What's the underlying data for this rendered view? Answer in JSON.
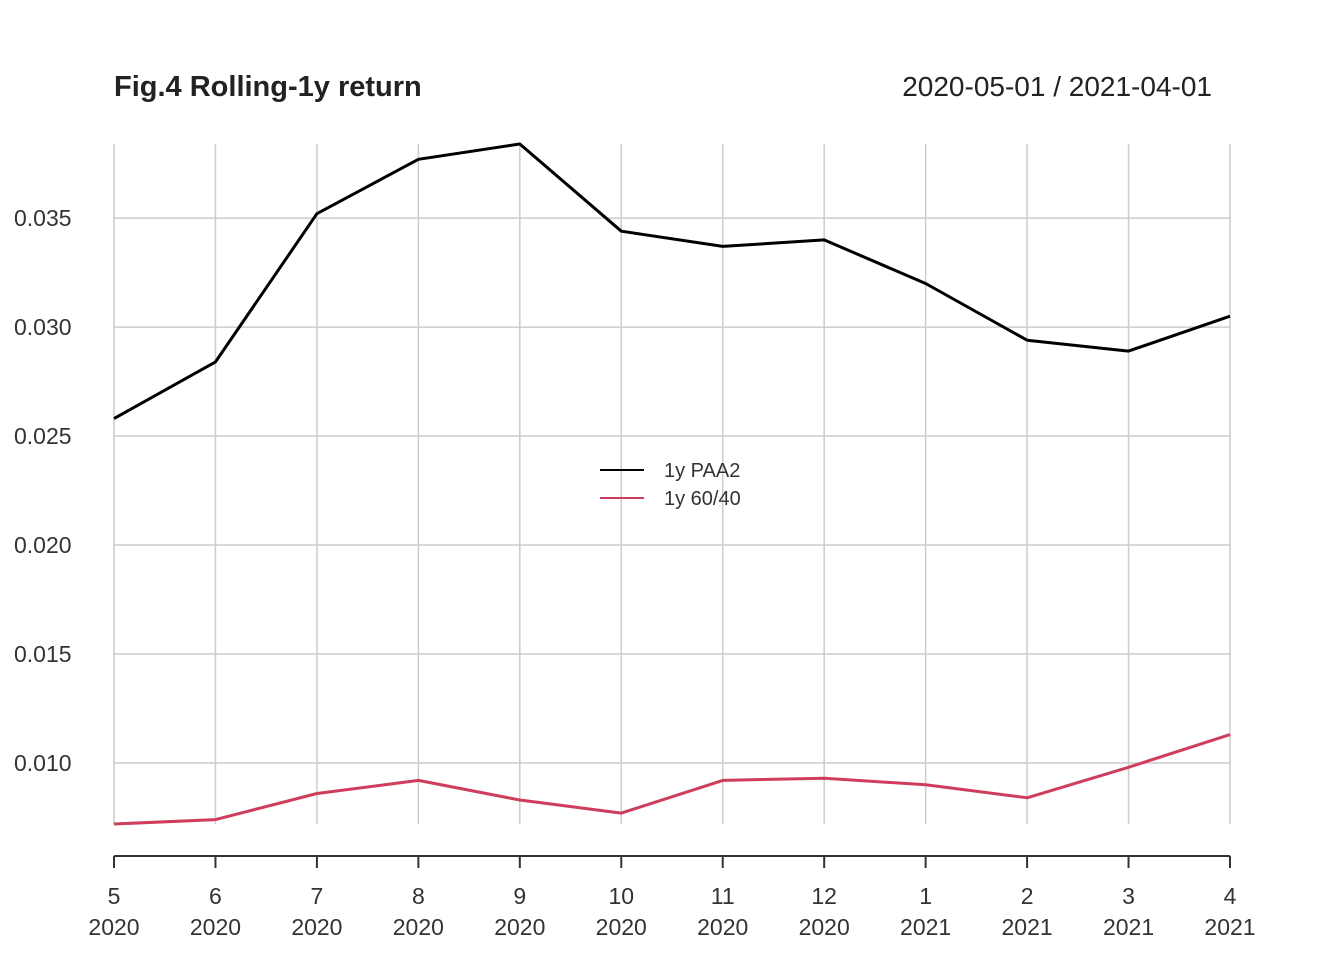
{
  "chart_data": {
    "type": "line",
    "title": "Fig.4 Rolling-1y return",
    "date_range": "2020-05-01 / 2021-04-01",
    "xlabel": "",
    "ylabel": "",
    "x": [
      "2020-05-01",
      "2020-06-01",
      "2020-07-01",
      "2020-08-01",
      "2020-09-01",
      "2020-10-01",
      "2020-11-01",
      "2020-12-01",
      "2021-01-01",
      "2021-02-01",
      "2021-03-01",
      "2021-04-01"
    ],
    "x_tick_labels": [
      {
        "month": "5",
        "year": "2020"
      },
      {
        "month": "6",
        "year": "2020"
      },
      {
        "month": "7",
        "year": "2020"
      },
      {
        "month": "8",
        "year": "2020"
      },
      {
        "month": "9",
        "year": "2020"
      },
      {
        "month": "10",
        "year": "2020"
      },
      {
        "month": "11",
        "year": "2020"
      },
      {
        "month": "12",
        "year": "2020"
      },
      {
        "month": "1",
        "year": "2021"
      },
      {
        "month": "2",
        "year": "2021"
      },
      {
        "month": "3",
        "year": "2021"
      },
      {
        "month": "4",
        "year": "2021"
      }
    ],
    "y_ticks": [
      0.01,
      0.015,
      0.02,
      0.025,
      0.03,
      0.035
    ],
    "y_tick_labels": [
      "0.010",
      "0.015",
      "0.020",
      "0.025",
      "0.030",
      "0.035"
    ],
    "ylim": [
      0.0072,
      0.0384
    ],
    "grid": true,
    "legend_position": "center",
    "series": [
      {
        "name": "1y PAA2",
        "color": "#000000",
        "values": [
          0.0258,
          0.0284,
          0.0352,
          0.0377,
          0.0384,
          0.0344,
          0.0337,
          0.034,
          0.032,
          0.0294,
          0.0289,
          0.0305
        ]
      },
      {
        "name": "1y 60/40",
        "color": "#d03c5c",
        "values": [
          0.0072,
          0.0074,
          0.0086,
          0.0092,
          0.0083,
          0.0077,
          0.0092,
          0.0093,
          0.009,
          0.0084,
          0.0098,
          0.0113
        ]
      }
    ]
  }
}
